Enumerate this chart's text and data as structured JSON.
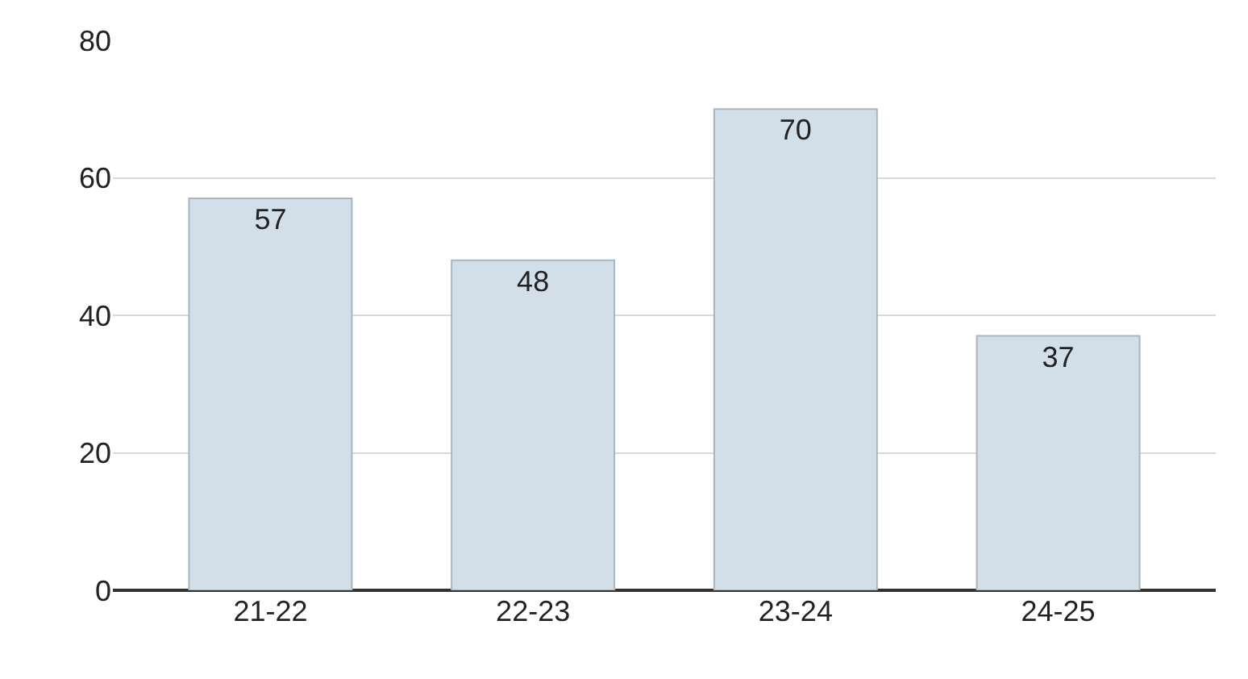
{
  "chart_data": {
    "type": "bar",
    "categories": [
      "21-22",
      "22-23",
      "23-24",
      "24-25"
    ],
    "values": [
      57,
      48,
      70,
      37
    ],
    "color": "#d3dfe8",
    "ylim": [
      0,
      80
    ],
    "yticks": [
      0,
      20,
      40,
      60,
      80
    ],
    "grid": "y",
    "data_labels": true,
    "legend": false
  }
}
